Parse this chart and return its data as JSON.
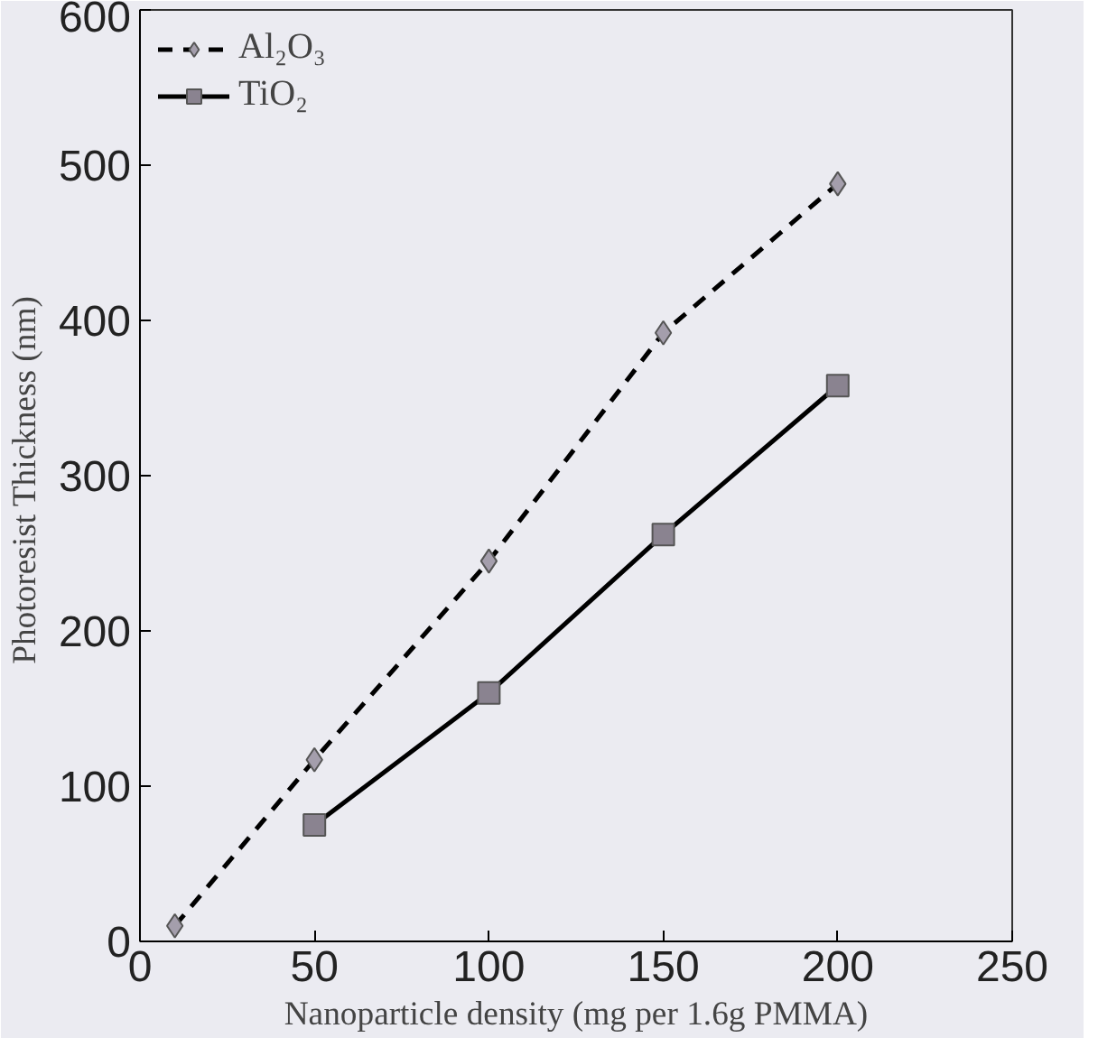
{
  "chart_data": {
    "type": "line",
    "xlabel": "Nanoparticle density (mg per 1.6g PMMA)",
    "ylabel": "Photoresist  Thickness (nm)",
    "xlim": [
      0,
      250
    ],
    "xticks": [
      0,
      50,
      100,
      150,
      200,
      250
    ],
    "ylim": [
      0,
      600
    ],
    "yticks": [
      0,
      100,
      200,
      300,
      400,
      500,
      600
    ],
    "grid": false,
    "legend": "top left",
    "series": [
      {
        "name": "Al₂O₃",
        "color": "#000000",
        "marker": "diamond",
        "line_style": "dashed",
        "x": [
          10,
          50,
          100,
          150,
          200
        ],
        "values": [
          10,
          117,
          245,
          392,
          488
        ]
      },
      {
        "name": "TiO₂",
        "color": "#000000",
        "marker": "square",
        "line_style": "solid",
        "x": [
          50,
          100,
          150,
          200
        ],
        "values": [
          75,
          160,
          262,
          358
        ]
      }
    ]
  }
}
